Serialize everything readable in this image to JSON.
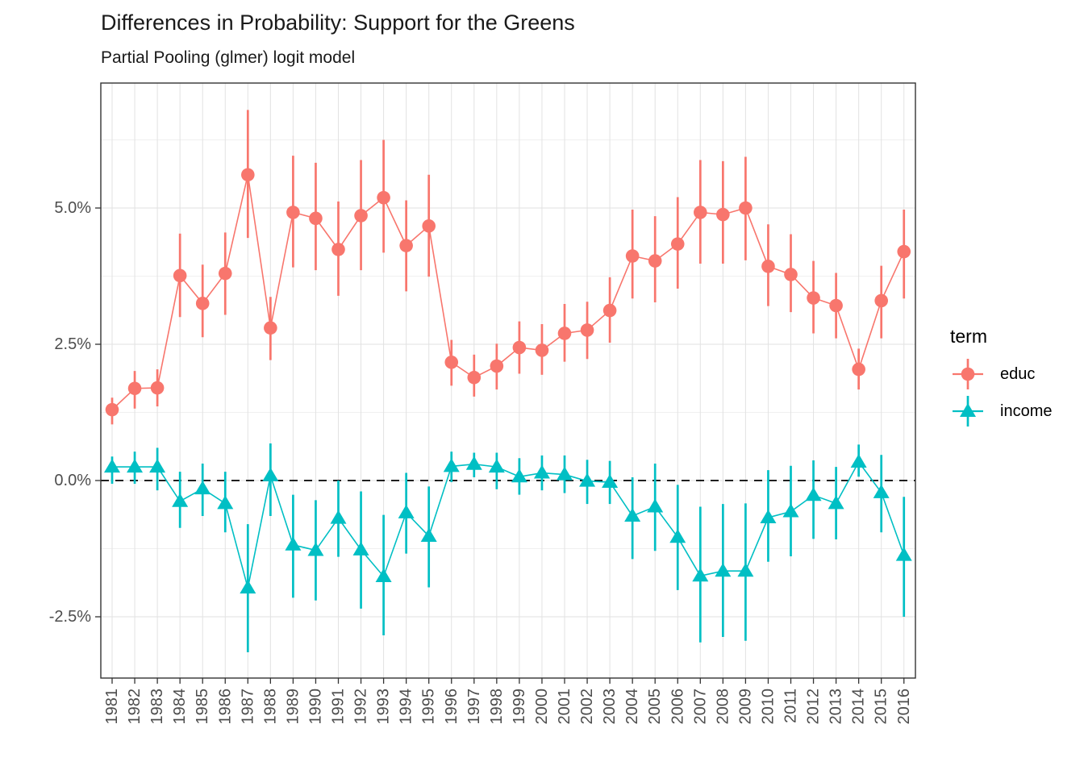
{
  "legend": {
    "title": "term",
    "position": "right"
  },
  "chart_data": {
    "type": "line",
    "title": "Differences in Probability: Support for the Greens",
    "subtitle": "Partial Pooling (glmer) logit model",
    "xlabel": "",
    "ylabel": "",
    "units": "percent",
    "ylim": [
      -3.6,
      7.3
    ],
    "grid": true,
    "legend_position": "right",
    "x_categories": [
      "1981",
      "1982",
      "1983",
      "1984",
      "1985",
      "1986",
      "1987",
      "1988",
      "1989",
      "1990",
      "1991",
      "1992",
      "1993",
      "1994",
      "1995",
      "1996",
      "1997",
      "1998",
      "1999",
      "2000",
      "2001",
      "2002",
      "2003",
      "2004",
      "2005",
      "2006",
      "2007",
      "2008",
      "2009",
      "2010",
      "2011",
      "2012",
      "2013",
      "2014",
      "2015",
      "2016"
    ],
    "y_ticks": [
      {
        "label": "5.0%",
        "value": 5.0
      },
      {
        "label": "2.5%",
        "value": 2.5
      },
      {
        "label": "0.0%",
        "value": 0.0
      },
      {
        "label": "-2.5%",
        "value": -2.5
      }
    ],
    "y_major_gridlines": [
      5.0,
      2.5,
      0.0,
      -2.5
    ],
    "y_minor_gridlines": [
      6.25,
      3.75,
      1.25,
      -1.25
    ],
    "zero_reference_line": {
      "value": 0,
      "style": "dashed",
      "color": "#000000"
    },
    "series": [
      {
        "name": "educ",
        "marker": "circle",
        "color": "#F8766D",
        "values": [
          1.3,
          1.69,
          1.7,
          3.76,
          3.25,
          3.8,
          5.61,
          2.8,
          4.92,
          4.81,
          4.24,
          4.86,
          5.19,
          4.31,
          4.67,
          2.17,
          1.89,
          2.1,
          2.44,
          2.39,
          2.7,
          2.76,
          3.12,
          4.12,
          4.03,
          4.34,
          4.92,
          4.88,
          5.0,
          3.93,
          3.78,
          3.35,
          3.21,
          2.04,
          3.3,
          4.2
        ],
        "lower": [
          1.03,
          1.32,
          1.36,
          3.0,
          2.63,
          3.04,
          4.45,
          2.21,
          3.91,
          3.86,
          3.39,
          3.86,
          4.18,
          3.47,
          3.74,
          1.74,
          1.54,
          1.67,
          1.96,
          1.94,
          2.18,
          2.23,
          2.53,
          3.34,
          3.27,
          3.52,
          3.98,
          3.98,
          4.04,
          3.2,
          3.09,
          2.7,
          2.61,
          1.67,
          2.61,
          3.34
        ],
        "upper": [
          1.52,
          2.01,
          2.04,
          4.53,
          3.96,
          4.55,
          6.8,
          3.37,
          5.96,
          5.83,
          5.12,
          5.88,
          6.25,
          5.14,
          5.61,
          2.58,
          2.31,
          2.51,
          2.92,
          2.87,
          3.24,
          3.28,
          3.73,
          4.97,
          4.85,
          5.2,
          5.88,
          5.86,
          5.94,
          4.7,
          4.52,
          4.03,
          3.81,
          2.42,
          3.94,
          4.97
        ]
      },
      {
        "name": "income",
        "marker": "triangle",
        "color": "#00BFC4",
        "values": [
          0.25,
          0.25,
          0.25,
          -0.38,
          -0.15,
          -0.42,
          -1.97,
          0.09,
          -1.18,
          -1.28,
          -0.69,
          -1.27,
          -1.76,
          -0.59,
          -1.02,
          0.26,
          0.3,
          0.25,
          0.07,
          0.14,
          0.11,
          -0.01,
          -0.03,
          -0.65,
          -0.48,
          -1.04,
          -1.75,
          -1.66,
          -1.66,
          -0.68,
          -0.57,
          -0.27,
          -0.42,
          0.34,
          -0.22,
          -1.37
        ],
        "lower": [
          -0.06,
          -0.06,
          -0.18,
          -0.87,
          -0.65,
          -0.95,
          -3.15,
          -0.65,
          -2.15,
          -2.2,
          -1.4,
          -2.35,
          -2.84,
          -1.34,
          -1.96,
          -0.03,
          0.06,
          -0.16,
          -0.26,
          -0.18,
          -0.23,
          -0.43,
          -0.43,
          -1.44,
          -1.29,
          -2.01,
          -2.97,
          -2.87,
          -2.94,
          -1.49,
          -1.39,
          -1.07,
          -1.08,
          0.07,
          -0.95,
          -2.5
        ],
        "upper": [
          0.44,
          0.53,
          0.6,
          0.16,
          0.31,
          0.16,
          -0.8,
          0.68,
          -0.26,
          -0.36,
          0.0,
          -0.2,
          -0.63,
          0.14,
          -0.11,
          0.53,
          0.51,
          0.51,
          0.41,
          0.46,
          0.46,
          0.38,
          0.36,
          0.06,
          0.31,
          -0.08,
          -0.48,
          -0.43,
          -0.42,
          0.19,
          0.27,
          0.37,
          0.25,
          0.66,
          0.47,
          -0.3
        ]
      }
    ]
  }
}
